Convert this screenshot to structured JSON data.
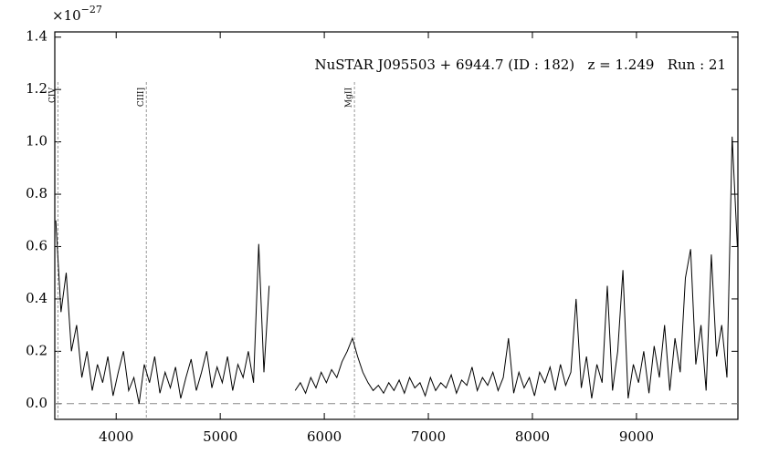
{
  "chart_data": {
    "type": "line",
    "annotation": "NuSTAR J095503 + 6944.7 (ID : 182)   z = 1.249   Run : 21",
    "y_scale": {
      "base": "×10",
      "exponent": "−27"
    },
    "spectral_lines": [
      {
        "label": "CIV",
        "x": 3440
      },
      {
        "label": "CIII]",
        "x": 4290
      },
      {
        "label": "MgII",
        "x": 6290
      }
    ],
    "x": [
      3420,
      3470,
      3520,
      3570,
      3620,
      3670,
      3720,
      3770,
      3820,
      3870,
      3920,
      3970,
      4020,
      4070,
      4120,
      4170,
      4220,
      4270,
      4320,
      4370,
      4420,
      4470,
      4520,
      4570,
      4620,
      4670,
      4720,
      4770,
      4820,
      4870,
      4920,
      4970,
      5020,
      5070,
      5120,
      5170,
      5220,
      5270,
      5320,
      5370,
      5420,
      5470,
      5520,
      5570,
      5620,
      5670,
      5720,
      5770,
      5820,
      5870,
      5920,
      5970,
      6020,
      6070,
      6120,
      6170,
      6220,
      6270,
      6320,
      6370,
      6420,
      6470,
      6520,
      6570,
      6620,
      6670,
      6720,
      6770,
      6820,
      6870,
      6920,
      6970,
      7020,
      7070,
      7120,
      7170,
      7220,
      7270,
      7320,
      7370,
      7420,
      7470,
      7520,
      7570,
      7620,
      7670,
      7720,
      7770,
      7820,
      7870,
      7920,
      7970,
      8020,
      8070,
      8120,
      8170,
      8220,
      8270,
      8320,
      8370,
      8420,
      8470,
      8520,
      8570,
      8620,
      8670,
      8720,
      8770,
      8820,
      8870,
      8920,
      8970,
      9020,
      9070,
      9120,
      9170,
      9220,
      9270,
      9320,
      9370,
      9420,
      9470,
      9520,
      9570,
      9620,
      9670,
      9720,
      9770,
      9820,
      9870,
      9920,
      9970
    ],
    "series": [
      {
        "color": "#000000",
        "values": [
          0.7,
          0.35,
          0.5,
          0.2,
          0.3,
          0.1,
          0.2,
          0.05,
          0.15,
          0.08,
          0.18,
          0.03,
          0.12,
          0.2,
          0.05,
          0.1,
          0.0,
          0.15,
          0.08,
          0.18,
          0.04,
          0.12,
          0.06,
          0.14,
          0.02,
          0.1,
          0.17,
          0.05,
          0.12,
          0.2,
          0.06,
          0.14,
          0.08,
          0.18,
          0.05,
          0.15,
          0.1,
          0.2,
          0.08,
          0.61,
          0.12,
          0.45,
          null,
          null,
          null,
          null,
          0.05,
          0.08,
          0.04,
          0.1,
          0.06,
          0.12,
          0.08,
          0.13,
          0.1,
          0.16,
          0.2,
          0.25,
          0.18,
          0.12,
          0.08,
          0.05,
          0.07,
          0.04,
          0.08,
          0.05,
          0.09,
          0.04,
          0.1,
          0.06,
          0.08,
          0.03,
          0.1,
          0.05,
          0.08,
          0.06,
          0.11,
          0.04,
          0.09,
          0.07,
          0.14,
          0.05,
          0.1,
          0.07,
          0.12,
          0.05,
          0.1,
          0.25,
          0.04,
          0.12,
          0.06,
          0.1,
          0.03,
          0.12,
          0.08,
          0.14,
          0.05,
          0.15,
          0.07,
          0.12,
          0.4,
          0.06,
          0.18,
          0.02,
          0.15,
          0.08,
          0.45,
          0.05,
          0.2,
          0.51,
          0.02,
          0.15,
          0.08,
          0.2,
          0.04,
          0.22,
          0.1,
          0.3,
          0.05,
          0.25,
          0.12,
          0.48,
          0.59,
          0.15,
          0.3,
          0.05,
          0.57,
          0.18,
          0.3,
          0.1,
          1.02,
          0.6
        ]
      }
    ],
    "xlim": [
      3410,
      9975
    ],
    "ylim": [
      -0.06,
      1.42
    ],
    "xticks": [
      4000,
      5000,
      6000,
      7000,
      8000,
      9000
    ],
    "yticks": [
      {
        "value": 0,
        "label": "0.0"
      },
      0.2,
      0.4,
      0.6,
      0.8,
      {
        "value": 1,
        "label": "1.0"
      },
      1.2,
      1.4
    ],
    "grid": false
  }
}
